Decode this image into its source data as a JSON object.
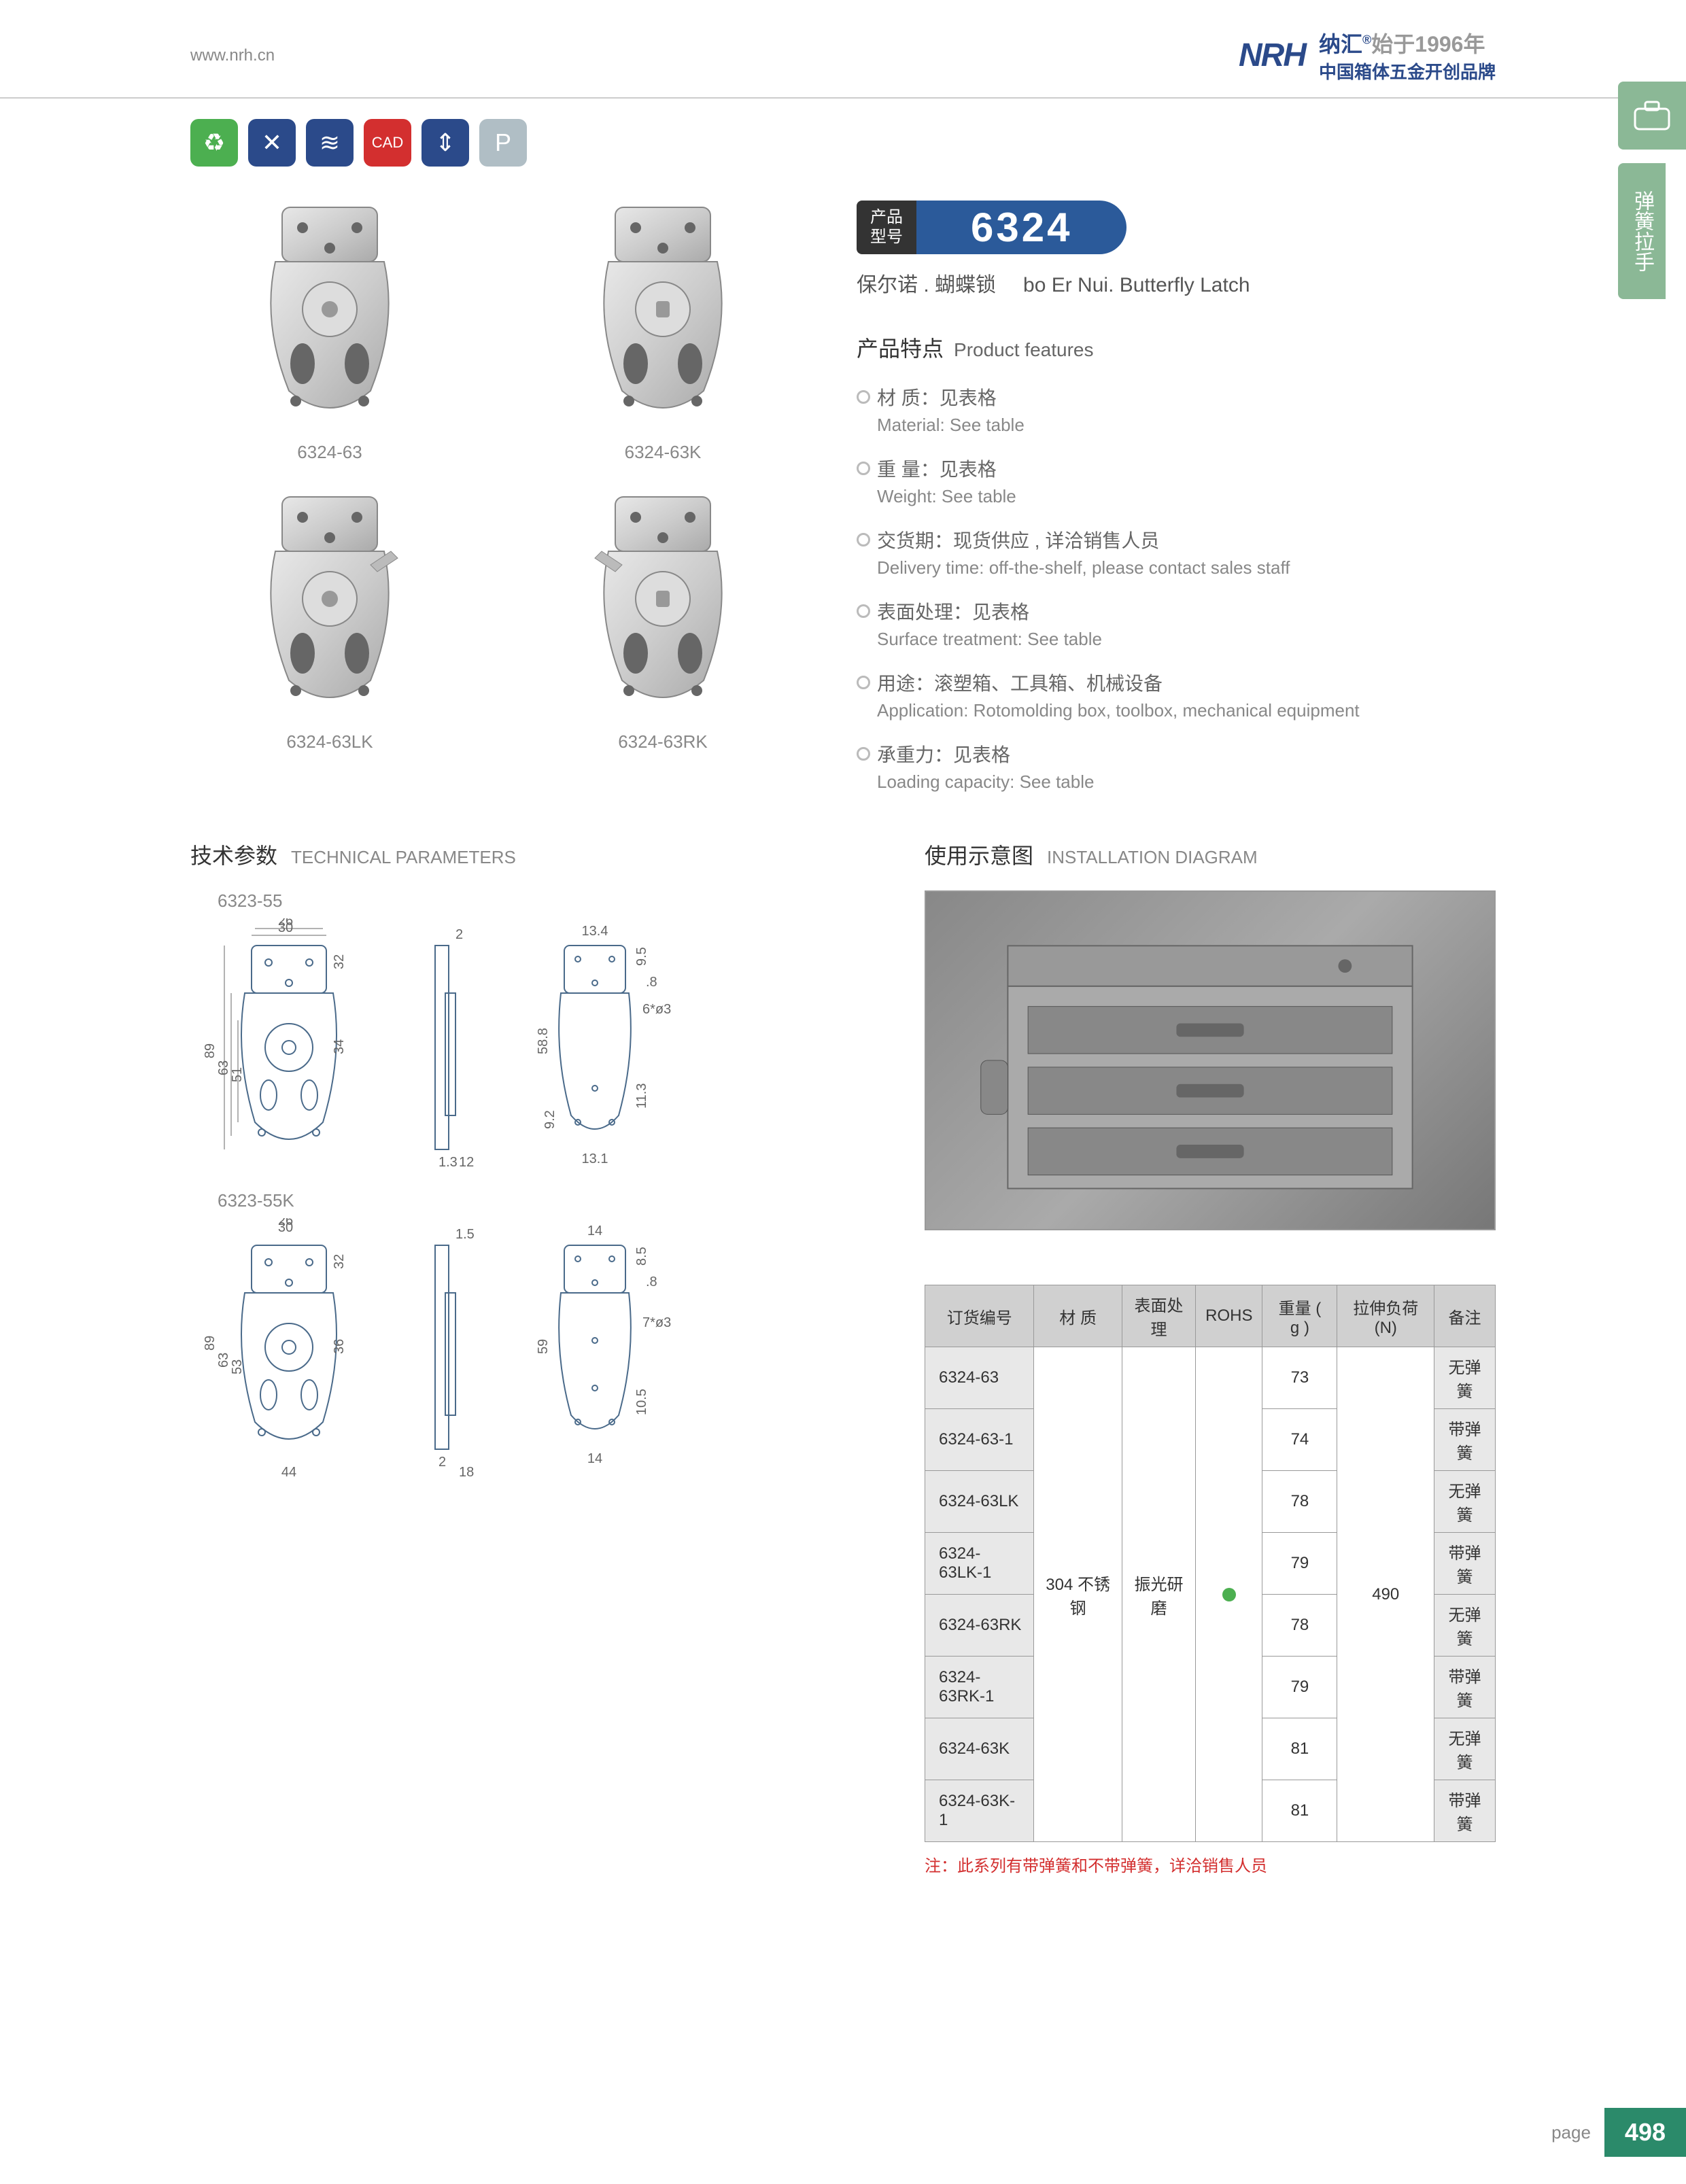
{
  "header": {
    "url": "www.nrh.cn",
    "logo": "NRH",
    "brand_cn": "纳汇",
    "since": "始于1996年",
    "tagline": "中国箱体五金开创品牌",
    "reg": "®"
  },
  "side_tab": {
    "label": "弹簧拉手"
  },
  "icons": [
    {
      "bg": "#4caf50",
      "glyph": "♻"
    },
    {
      "bg": "#2b4a8a",
      "glyph": "✕"
    },
    {
      "bg": "#2b4a8a",
      "glyph": "≋"
    },
    {
      "bg": "#d32f2f",
      "glyph": "CAD"
    },
    {
      "bg": "#2b4a8a",
      "glyph": "⇕"
    },
    {
      "bg": "#b0bec5",
      "glyph": "P"
    }
  ],
  "products": [
    {
      "id": "6324-63"
    },
    {
      "id": "6324-63K"
    },
    {
      "id": "6324-63LK"
    },
    {
      "id": "6324-63RK"
    }
  ],
  "model": {
    "label_l1": "产品",
    "label_l2": "型号",
    "number": "6324"
  },
  "name": {
    "cn": "保尔诺 . 蝴蝶锁",
    "en": "bo Er Nui. Butterfly Latch"
  },
  "features_title": {
    "cn": "产品特点",
    "en": "Product features"
  },
  "features": [
    {
      "cn": "材  质：见表格",
      "en": "Material: See table"
    },
    {
      "cn": "重  量：见表格",
      "en": "Weight: See table"
    },
    {
      "cn": "交货期：现货供应 , 详洽销售人员",
      "en": "Delivery time: off-the-shelf, please contact sales staff"
    },
    {
      "cn": "表面处理：见表格",
      "en": "Surface treatment:  See table"
    },
    {
      "cn": "用途：滚塑箱、工具箱、机械设备",
      "en": "Application: Rotomolding box, toolbox, mechanical equipment"
    },
    {
      "cn": "承重力：见表格",
      "en": "Loading capacity: See table"
    }
  ],
  "tech_title": {
    "cn": "技术参数",
    "en": "TECHNICAL PARAMETERS"
  },
  "install_title": {
    "cn": "使用示意图",
    "en": "INSTALLATION DIAGRAM"
  },
  "diagrams": [
    {
      "label": "6323-55"
    },
    {
      "label": "6323-55K"
    }
  ],
  "dims1": {
    "a": "30",
    "b": "26",
    "c": "89",
    "d": "63",
    "e": "51",
    "f": "32",
    "g": "34",
    "h": "2",
    "i": "1.3",
    "j": "12",
    "k": "13.4",
    "l": "9.5",
    "m": ".8",
    "n": "6*ø3",
    "o": "58.8",
    "p": "11.3",
    "q": "9.2",
    "r": "13.1"
  },
  "dims2": {
    "a": "30",
    "b": "26",
    "c": "89",
    "d": "63",
    "e": "53",
    "f": "32",
    "g": "36",
    "h": "44",
    "i": "1.5",
    "j": "2",
    "k": "18",
    "l": "14",
    "m": "8.5",
    "n": ".8",
    "o": "7*ø3",
    "p": "59",
    "q": "10.5",
    "r": "14"
  },
  "table": {
    "headers": [
      "订货编号",
      "材    质",
      "表面处理",
      "ROHS",
      "重量 ( g )",
      "拉伸负荷 (N)",
      "备注"
    ],
    "material": "304 不锈钢",
    "surface": "振光研磨",
    "load": "490",
    "rows": [
      {
        "part": "6324-63",
        "weight": "73",
        "remark": "无弹簧"
      },
      {
        "part": "6324-63-1",
        "weight": "74",
        "remark": "带弹簧"
      },
      {
        "part": "6324-63LK",
        "weight": "78",
        "remark": "无弹簧"
      },
      {
        "part": "6324-63LK-1",
        "weight": "79",
        "remark": "带弹簧"
      },
      {
        "part": "6324-63RK",
        "weight": "78",
        "remark": "无弹簧"
      },
      {
        "part": "6324-63RK-1",
        "weight": "79",
        "remark": "带弹簧"
      },
      {
        "part": "6324-63K",
        "weight": "81",
        "remark": "无弹簧"
      },
      {
        "part": "6324-63K-1",
        "weight": "81",
        "remark": "带弹簧"
      }
    ],
    "note": "注：此系列有带弹簧和不带弹簧，详洽销售人员"
  },
  "footer": {
    "page_label": "page",
    "page_num": "498"
  }
}
